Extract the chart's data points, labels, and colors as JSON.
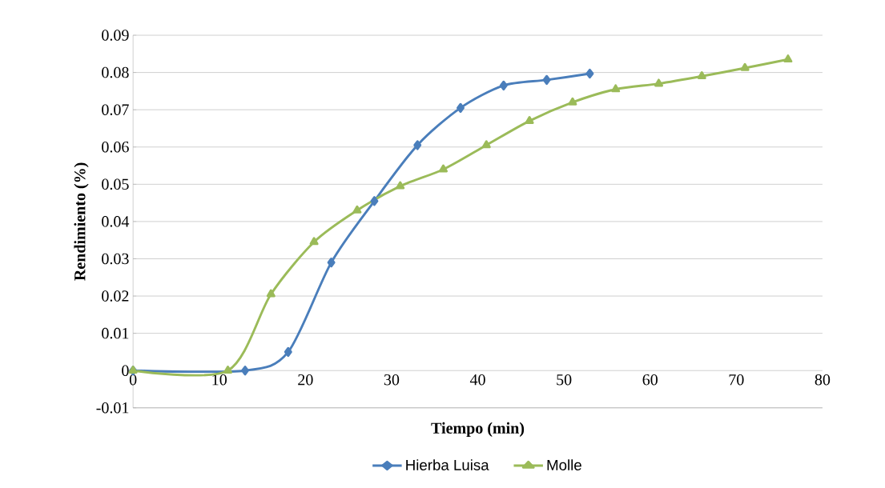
{
  "chart_data": {
    "type": "line",
    "xlabel": "Tiempo (min)",
    "ylabel": "Rendimiento (%)",
    "xlim": [
      0,
      80
    ],
    "xticks": [
      0,
      10,
      20,
      30,
      40,
      50,
      60,
      70,
      80
    ],
    "ylim": [
      -0.01,
      0.09
    ],
    "yticks": [
      -0.01,
      0,
      0.01,
      0.02,
      0.03,
      0.04,
      0.05,
      0.06,
      0.07,
      0.08,
      0.09
    ],
    "grid": "y",
    "legend": "bottom",
    "line_style": "solid",
    "series": [
      {
        "name": "Hierba Luisa",
        "color": "#4a7ebb",
        "marker": "diamond",
        "x": [
          0,
          13,
          18,
          23,
          28,
          33,
          38,
          43,
          48,
          53
        ],
        "values": [
          0,
          0,
          0.005,
          0.029,
          0.0455,
          0.0605,
          0.0705,
          0.0765,
          0.078,
          0.0797
        ]
      },
      {
        "name": "Molle",
        "color": "#9bbb59",
        "marker": "triangle",
        "x": [
          0,
          11,
          16,
          21,
          26,
          31,
          36,
          41,
          46,
          51,
          56,
          61,
          66,
          71,
          76
        ],
        "values": [
          0,
          0,
          0.0205,
          0.0345,
          0.043,
          0.0495,
          0.054,
          0.0605,
          0.067,
          0.072,
          0.0755,
          0.077,
          0.079,
          0.0812,
          0.0835
        ]
      }
    ]
  }
}
